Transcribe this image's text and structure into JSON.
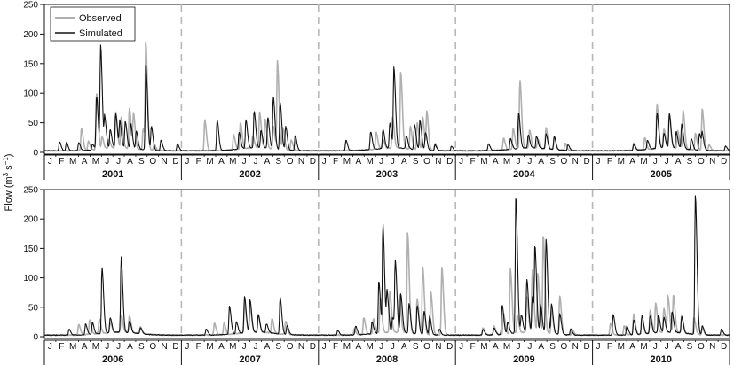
{
  "chart_data": {
    "type": "line",
    "ylabel_text": "Flow (m",
    "ylabel_sup": "3",
    "ylabel_mid": " s",
    "ylabel_sup2": "−1",
    "ylabel_end": ")",
    "y_ticks": [
      0,
      50,
      100,
      150,
      200,
      250
    ],
    "ylim": [
      0,
      250
    ],
    "month_labels": [
      "J",
      "F",
      "M",
      "A",
      "M",
      "J",
      "J",
      "A",
      "S",
      "O",
      "N",
      "D"
    ],
    "legend": {
      "position": "top-left",
      "entries": [
        {
          "name": "Observed",
          "color": "#b0b0b0"
        },
        {
          "name": "Simulated",
          "color": "#111111"
        }
      ]
    },
    "panels": [
      {
        "years": [
          "2001",
          "2002",
          "2003",
          "2004",
          "2005"
        ],
        "series": [
          {
            "name": "Observed",
            "color": "#b0b0b0",
            "peaks": [
              [
                0.27,
                38
              ],
              [
                0.32,
                15
              ],
              [
                0.38,
                95
              ],
              [
                0.42,
                20
              ],
              [
                0.47,
                15
              ],
              [
                0.52,
                60
              ],
              [
                0.56,
                52
              ],
              [
                0.62,
                68
              ],
              [
                0.65,
                58
              ],
              [
                0.72,
                35
              ],
              [
                0.74,
                175
              ],
              [
                0.8,
                10
              ],
              [
                1.17,
                52
              ],
              [
                1.38,
                25
              ],
              [
                1.43,
                45
              ],
              [
                1.52,
                20
              ],
              [
                1.57,
                60
              ],
              [
                1.61,
                48
              ],
              [
                1.67,
                38
              ],
              [
                1.7,
                148
              ],
              [
                1.74,
                38
              ],
              [
                1.8,
                18
              ],
              [
                2.42,
                28
              ],
              [
                2.47,
                15
              ],
              [
                2.54,
                52
              ],
              [
                2.6,
                128
              ],
              [
                2.67,
                38
              ],
              [
                2.72,
                45
              ],
              [
                2.76,
                55
              ],
              [
                2.79,
                65
              ],
              [
                2.85,
                12
              ],
              [
                3.35,
                20
              ],
              [
                3.42,
                35
              ],
              [
                3.47,
                115
              ],
              [
                3.54,
                30
              ],
              [
                3.6,
                15
              ],
              [
                3.66,
                35
              ],
              [
                3.72,
                22
              ],
              [
                3.8,
                12
              ],
              [
                4.3,
                12
              ],
              [
                4.38,
                20
              ],
              [
                4.47,
                75
              ],
              [
                4.52,
                32
              ],
              [
                4.56,
                58
              ],
              [
                4.62,
                30
              ],
              [
                4.66,
                65
              ],
              [
                4.75,
                28
              ],
              [
                4.8,
                70
              ],
              [
                4.85,
                10
              ]
            ]
          },
          {
            "name": "Simulated",
            "color": "#111111",
            "peaks": [
              [
                0.11,
                15
              ],
              [
                0.16,
                14
              ],
              [
                0.25,
                14
              ],
              [
                0.35,
                10
              ],
              [
                0.38,
                90
              ],
              [
                0.41,
                173
              ],
              [
                0.44,
                50
              ],
              [
                0.48,
                32
              ],
              [
                0.52,
                58
              ],
              [
                0.55,
                45
              ],
              [
                0.59,
                45
              ],
              [
                0.63,
                42
              ],
              [
                0.67,
                30
              ],
              [
                0.74,
                145
              ],
              [
                0.78,
                40
              ],
              [
                0.85,
                18
              ],
              [
                0.97,
                12
              ],
              [
                1.26,
                52
              ],
              [
                1.42,
                28
              ],
              [
                1.47,
                48
              ],
              [
                1.53,
                62
              ],
              [
                1.58,
                30
              ],
              [
                1.63,
                52
              ],
              [
                1.67,
                88
              ],
              [
                1.72,
                80
              ],
              [
                1.76,
                40
              ],
              [
                1.83,
                25
              ],
              [
                2.2,
                18
              ],
              [
                2.38,
                30
              ],
              [
                2.47,
                32
              ],
              [
                2.52,
                42
              ],
              [
                2.55,
                135
              ],
              [
                2.64,
                22
              ],
              [
                2.7,
                42
              ],
              [
                2.74,
                50
              ],
              [
                2.78,
                30
              ],
              [
                2.85,
                10
              ],
              [
                2.97,
                8
              ],
              [
                3.24,
                12
              ],
              [
                3.4,
                18
              ],
              [
                3.46,
                60
              ],
              [
                3.53,
                22
              ],
              [
                3.59,
                20
              ],
              [
                3.66,
                25
              ],
              [
                3.72,
                22
              ],
              [
                3.82,
                10
              ],
              [
                4.3,
                10
              ],
              [
                4.4,
                15
              ],
              [
                4.47,
                60
              ],
              [
                4.52,
                25
              ],
              [
                4.56,
                58
              ],
              [
                4.61,
                28
              ],
              [
                4.65,
                42
              ],
              [
                4.72,
                18
              ],
              [
                4.78,
                28
              ],
              [
                4.8,
                25
              ],
              [
                4.97,
                8
              ]
            ]
          }
        ]
      },
      {
        "years": [
          "2006",
          "2007",
          "2008",
          "2009",
          "2010"
        ],
        "series": [
          {
            "name": "Observed",
            "color": "#b0b0b0",
            "peaks": [
              [
                0.25,
                18
              ],
              [
                0.33,
                25
              ],
              [
                0.4,
                25
              ],
              [
                0.48,
                18
              ],
              [
                0.56,
                30
              ],
              [
                0.62,
                28
              ],
              [
                0.7,
                12
              ],
              [
                1.24,
                20
              ],
              [
                1.31,
                20
              ],
              [
                1.46,
                50
              ],
              [
                1.5,
                45
              ],
              [
                1.56,
                30
              ],
              [
                1.66,
                25
              ],
              [
                1.76,
                22
              ],
              [
                2.26,
                10
              ],
              [
                2.33,
                28
              ],
              [
                2.4,
                25
              ],
              [
                2.45,
                60
              ],
              [
                2.52,
                70
              ],
              [
                2.59,
                65
              ],
              [
                2.65,
                170
              ],
              [
                2.72,
                60
              ],
              [
                2.76,
                115
              ],
              [
                2.82,
                72
              ],
              [
                2.9,
                115
              ],
              [
                3.2,
                12
              ],
              [
                3.28,
                15
              ],
              [
                3.35,
                35
              ],
              [
                3.4,
                110
              ],
              [
                3.45,
                30
              ],
              [
                3.52,
                60
              ],
              [
                3.56,
                105
              ],
              [
                3.6,
                100
              ],
              [
                3.64,
                165
              ],
              [
                3.7,
                40
              ],
              [
                3.76,
                65
              ],
              [
                3.85,
                10
              ],
              [
                4.13,
                20
              ],
              [
                4.23,
                15
              ],
              [
                4.3,
                35
              ],
              [
                4.36,
                28
              ],
              [
                4.42,
                40
              ],
              [
                4.46,
                50
              ],
              [
                4.52,
                40
              ],
              [
                4.55,
                60
              ],
              [
                4.59,
                63
              ],
              [
                4.65,
                30
              ],
              [
                4.74,
                28
              ],
              [
                4.8,
                10
              ]
            ]
          },
          {
            "name": "Simulated",
            "color": "#111111",
            "peaks": [
              [
                0.18,
                10
              ],
              [
                0.3,
                18
              ],
              [
                0.35,
                20
              ],
              [
                0.42,
                112
              ],
              [
                0.48,
                25
              ],
              [
                0.56,
                128
              ],
              [
                0.62,
                20
              ],
              [
                0.7,
                10
              ],
              [
                1.18,
                10
              ],
              [
                1.35,
                48
              ],
              [
                1.4,
                20
              ],
              [
                1.46,
                62
              ],
              [
                1.5,
                55
              ],
              [
                1.56,
                30
              ],
              [
                1.62,
                15
              ],
              [
                1.72,
                62
              ],
              [
                1.77,
                15
              ],
              [
                2.14,
                8
              ],
              [
                2.27,
                15
              ],
              [
                2.39,
                20
              ],
              [
                2.44,
                88
              ],
              [
                2.47,
                182
              ],
              [
                2.5,
                65
              ],
              [
                2.54,
                25
              ],
              [
                2.56,
                118
              ],
              [
                2.6,
                65
              ],
              [
                2.66,
                50
              ],
              [
                2.72,
                48
              ],
              [
                2.77,
                40
              ],
              [
                2.81,
                32
              ],
              [
                2.88,
                10
              ],
              [
                3.2,
                10
              ],
              [
                3.28,
                12
              ],
              [
                3.34,
                50
              ],
              [
                3.38,
                20
              ],
              [
                3.44,
                232
              ],
              [
                3.48,
                30
              ],
              [
                3.52,
                90
              ],
              [
                3.56,
                60
              ],
              [
                3.58,
                135
              ],
              [
                3.62,
                48
              ],
              [
                3.66,
                160
              ],
              [
                3.7,
                50
              ],
              [
                3.76,
                35
              ],
              [
                3.84,
                10
              ],
              [
                4.15,
                35
              ],
              [
                4.25,
                15
              ],
              [
                4.3,
                25
              ],
              [
                4.36,
                32
              ],
              [
                4.42,
                30
              ],
              [
                4.48,
                30
              ],
              [
                4.52,
                25
              ],
              [
                4.58,
                35
              ],
              [
                4.65,
                28
              ],
              [
                4.75,
                235
              ],
              [
                4.8,
                15
              ],
              [
                4.94,
                10
              ]
            ]
          }
        ]
      }
    ]
  }
}
